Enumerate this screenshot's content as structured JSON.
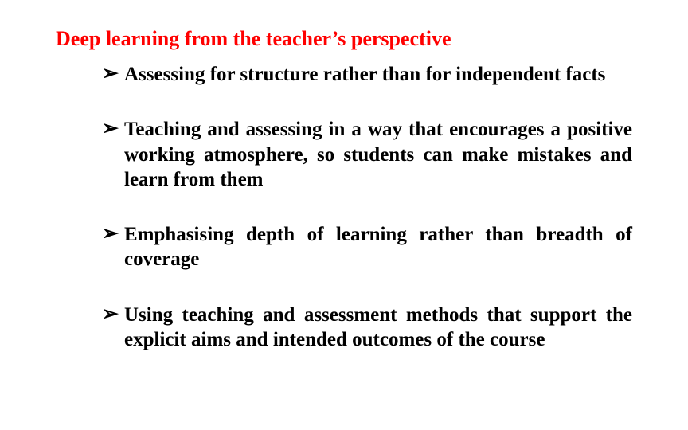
{
  "title": {
    "text": "Deep learning from the teacher’s perspective",
    "color": "#ff0000"
  },
  "bullet_glyph": "➢",
  "items": [
    "Assessing for structure rather than for independent facts",
    "Teaching and assessing in a way that encourages a positive working atmosphere, so students can make mistakes and learn from them",
    "Emphasising depth of learning rather than breadth of coverage",
    "Using teaching and assessment methods that support the explicit aims and intended outcomes of the course"
  ]
}
